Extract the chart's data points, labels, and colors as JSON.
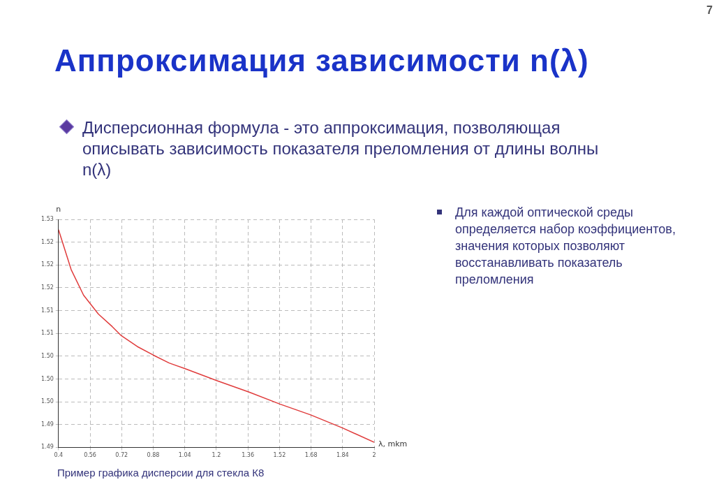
{
  "chart_data": {
    "type": "line",
    "title": "Аппроксимация зависимости n(λ)",
    "subtitle": "Дисперсионная формула - это аппроксимация, позволяющая описывать зависимость показателя преломления от длины волны n(λ)",
    "xlabel": "λ, mkm",
    "ylabel": "n",
    "x": [
      0.4,
      0.464,
      0.527,
      0.602,
      0.672,
      0.718,
      0.799,
      0.88,
      0.961,
      1.042,
      1.204,
      1.366,
      1.522,
      1.678,
      1.84,
      2.0
    ],
    "series": [
      {
        "color": "#e03c3c",
        "values": [
          1.5262,
          1.5192,
          1.5147,
          1.5114,
          1.5092,
          1.5076,
          1.5057,
          1.5042,
          1.5028,
          1.5018,
          1.4997,
          1.4977,
          1.4956,
          1.4937,
          1.4914,
          1.4889
        ]
      }
    ],
    "xlim": [
      0.4,
      2
    ],
    "xticks": [
      0.4,
      0.56,
      0.72,
      0.88,
      1.04,
      1.2,
      1.36,
      1.52,
      1.68,
      1.84,
      2
    ],
    "ylim": [
      1.488,
      1.528
    ],
    "yticks": [
      {
        "value": 1.488,
        "label": "1.49"
      },
      {
        "value": 1.492,
        "label": "1.49"
      },
      {
        "value": 1.496,
        "label": "1.50"
      },
      {
        "value": 1.5,
        "label": "1.50"
      },
      {
        "value": 1.504,
        "label": "1.50"
      },
      {
        "value": 1.508,
        "label": "1.51"
      },
      {
        "value": 1.512,
        "label": "1.51"
      },
      {
        "value": 1.516,
        "label": "1.52"
      },
      {
        "value": 1.52,
        "label": "1.52"
      },
      {
        "value": 1.524,
        "label": "1.52"
      },
      {
        "value": 1.528,
        "label": "1.53"
      }
    ],
    "grid": true,
    "marker": "none",
    "line_style": "solid",
    "annotations": [
      "Для каждой оптической среды определяется набор коэффициентов, значения которых позволяют восстанавливать показатель преломления",
      "Пример графика дисперсии для стекла К8",
      "7"
    ]
  }
}
